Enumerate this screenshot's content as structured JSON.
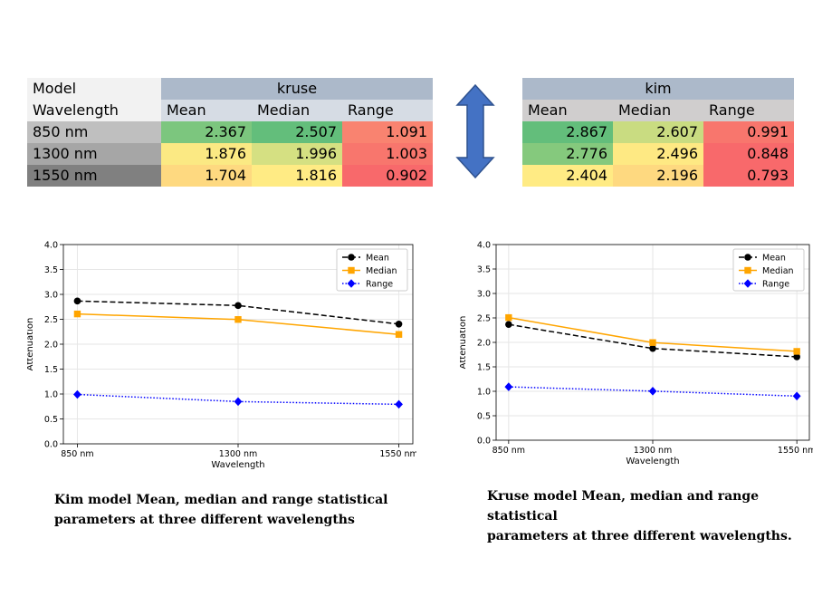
{
  "table": {
    "model_label": "Model",
    "wavelength_label": "Wavelength",
    "kruse_label": "kruse",
    "kim_label": "kim",
    "col_headers": [
      "Mean",
      "Median",
      "Range"
    ],
    "rows": [
      {
        "wavelength": "850 nm",
        "kruse": [
          "2.367",
          "2.507",
          "1.091"
        ],
        "kim": [
          "2.867",
          "2.607",
          "0.991"
        ]
      },
      {
        "wavelength": "1300 nm",
        "kruse": [
          "1.876",
          "1.996",
          "1.003"
        ],
        "kim": [
          "2.776",
          "2.496",
          "0.848"
        ]
      },
      {
        "wavelength": "1550 nm",
        "kruse": [
          "1.704",
          "1.816",
          "0.902"
        ],
        "kim": [
          "2.404",
          "2.196",
          "0.793"
        ]
      }
    ],
    "colors": {
      "model_header_bg": "#f2f2f2",
      "group_header_bg": "#acb9ca",
      "col_header_bg": "#d6dce4",
      "kim_col_header_bg": "#d0cece",
      "wl_row_bgs": [
        "#bfbfbf",
        "#a6a6a6",
        "#808080"
      ],
      "kruse_cells": [
        [
          "#7cc67e",
          "#63be7b",
          "#f98370"
        ],
        [
          "#fbe983",
          "#d5e082",
          "#f8766d"
        ],
        [
          "#fed980",
          "#ffeb84",
          "#f8696b"
        ]
      ],
      "kim_cells": [
        [
          "#63be7b",
          "#c9dc81",
          "#f8766d"
        ],
        [
          "#85c97d",
          "#fee983",
          "#f8696b"
        ],
        [
          "#ffeb84",
          "#fed980",
          "#f8696b"
        ]
      ]
    }
  },
  "arrow_color": "#4472c4",
  "chart_data": [
    {
      "type": "line",
      "categories": [
        "850 nm",
        "1300 nm",
        "1550 nm"
      ],
      "series": [
        {
          "name": "Mean",
          "values": [
            2.867,
            2.776,
            2.404
          ],
          "color": "#000000",
          "style": "dashed",
          "marker": "circle"
        },
        {
          "name": "Median",
          "values": [
            2.607,
            2.496,
            2.196
          ],
          "color": "#ffa500",
          "style": "solid",
          "marker": "square"
        },
        {
          "name": "Range",
          "values": [
            0.991,
            0.848,
            0.793
          ],
          "color": "#0000ff",
          "style": "dotted",
          "marker": "diamond"
        }
      ],
      "xlabel": "Wavelength",
      "ylabel": "Attenuation",
      "ylim": [
        0,
        4
      ],
      "yticks": [
        "0.0",
        "0.5",
        "1.0",
        "1.5",
        "2.0",
        "2.5",
        "3.0",
        "3.5",
        "4.0"
      ],
      "grid": true,
      "legend": "top-right",
      "caption": [
        "Kim model Mean, median and range statistical",
        "parameters at three different wavelengths"
      ]
    },
    {
      "type": "line",
      "categories": [
        "850 nm",
        "1300 nm",
        "1550 nm"
      ],
      "series": [
        {
          "name": "Mean",
          "values": [
            2.367,
            1.876,
            1.704
          ],
          "color": "#000000",
          "style": "dashed",
          "marker": "circle"
        },
        {
          "name": "Median",
          "values": [
            2.507,
            1.996,
            1.816
          ],
          "color": "#ffa500",
          "style": "solid",
          "marker": "square"
        },
        {
          "name": "Range",
          "values": [
            1.091,
            1.003,
            0.902
          ],
          "color": "#0000ff",
          "style": "dotted",
          "marker": "diamond"
        }
      ],
      "xlabel": "Wavelength",
      "ylabel": "Attenuation",
      "ylim": [
        0,
        4
      ],
      "yticks": [
        "0.0",
        "0.5",
        "1.0",
        "1.5",
        "2.0",
        "2.5",
        "3.0",
        "3.5",
        "4.0"
      ],
      "grid": true,
      "legend": "top-right",
      "caption": [
        "Kruse model Mean, median and range statistical",
        "parameters at three different wavelengths."
      ]
    }
  ]
}
